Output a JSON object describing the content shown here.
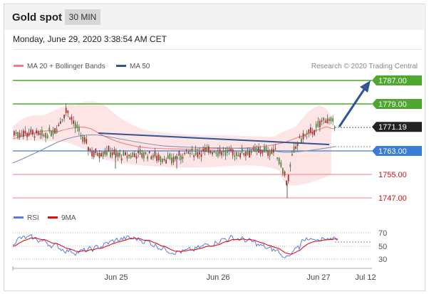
{
  "header": {
    "title": "Gold spot",
    "timeframe": "30 MIN"
  },
  "date": "Monday, June 29, 2020 3:38:54 AM CET",
  "credit": "Research © 2020 Trading Central",
  "legend_price": [
    {
      "label": "MA 20 + Bollinger Bands",
      "color": "#f08080"
    },
    {
      "label": "MA 50",
      "color": "#2f5597"
    }
  ],
  "legend_rsi": [
    {
      "label": "RSI",
      "color": "#5b7be0"
    },
    {
      "label": "9MA",
      "color": "#e01010"
    }
  ],
  "levels": [
    {
      "value": "1787.00",
      "color": "#4ea72e",
      "kind": "resistance",
      "filled": true,
      "text_color": "#ffffff"
    },
    {
      "value": "1779.00",
      "color": "#4ea72e",
      "kind": "resistance",
      "filled": true,
      "text_color": "#ffffff"
    },
    {
      "value": "1771.19",
      "color": "#222222",
      "kind": "last",
      "filled": true,
      "text_color": "#ffffff"
    },
    {
      "value": "1763.00",
      "color": "#3a7bd5",
      "kind": "pivot",
      "filled": true,
      "text_color": "#ffffff"
    },
    {
      "value": "1755.00",
      "color": "#d01010",
      "kind": "support",
      "filled": false,
      "text_color": "#d01010"
    },
    {
      "value": "1747.00",
      "color": "#d01010",
      "kind": "support",
      "filled": false,
      "text_color": "#d01010"
    }
  ],
  "rsi_ticks": [
    "70",
    "50",
    "30"
  ],
  "x_ticks": [
    "Jun 25",
    "Jun 26",
    "Jun 27",
    "Jul 12"
  ]
}
